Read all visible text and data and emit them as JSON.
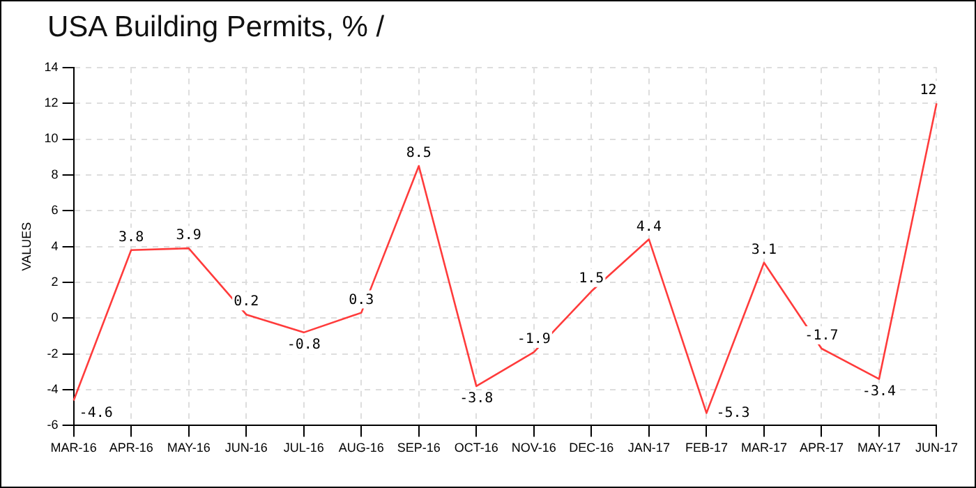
{
  "chart_data": {
    "type": "line",
    "title": "USA Building Permits, % /",
    "ylabel": "VALUES",
    "categories": [
      "MAR-16",
      "APR-16",
      "MAY-16",
      "JUN-16",
      "JUL-16",
      "AUG-16",
      "SEP-16",
      "OCT-16",
      "NOV-16",
      "DEC-16",
      "JAN-17",
      "FEB-17",
      "MAR-17",
      "APR-17",
      "MAY-17",
      "JUN-17"
    ],
    "series": [
      {
        "color": "#ff3b3b",
        "values": [
          -4.6,
          3.8,
          3.9,
          0.2,
          -0.8,
          0.3,
          8.5,
          -3.8,
          -1.9,
          1.5,
          4.4,
          -5.3,
          3.1,
          -1.7,
          -3.4,
          12
        ]
      }
    ],
    "ylim": [
      -6,
      14
    ],
    "yticks": [
      -6,
      -4,
      -2,
      0,
      2,
      4,
      6,
      8,
      10,
      12,
      14
    ],
    "grid": true,
    "data_labels": true,
    "marker": "none",
    "line_style": "solid",
    "legend": false
  }
}
